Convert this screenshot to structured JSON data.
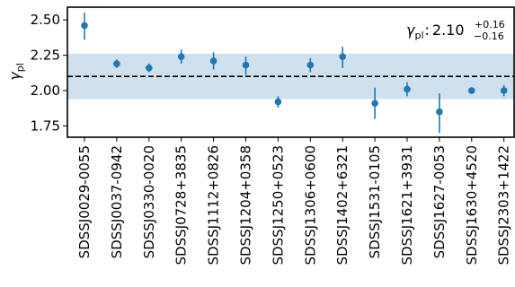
{
  "chart_data": {
    "type": "scatter",
    "ylabel_symbol": "γ",
    "ylabel_subscript": "pl",
    "ylim": [
      1.67,
      2.59
    ],
    "yticks": [
      {
        "value": 1.75,
        "label": "1.75"
      },
      {
        "value": 2.0,
        "label": "2.00"
      },
      {
        "value": 2.25,
        "label": "2.25"
      },
      {
        "value": 2.5,
        "label": "2.50"
      }
    ],
    "categories": [
      "SDSSJ0029-0055",
      "SDSSJ0037-0942",
      "SDSSJ0330-0020",
      "SDSSJ0728+3835",
      "SDSSJ1112+0826",
      "SDSSJ1204+0358",
      "SDSSJ1250+0523",
      "SDSSJ1306+0600",
      "SDSSJ1402+6321",
      "SDSSJ1531-0105",
      "SDSSJ1621+3931",
      "SDSSJ1627-0053",
      "SDSSJ1630+4520",
      "SDSSJ2303+1422"
    ],
    "series": [
      {
        "values": [
          2.46,
          2.19,
          2.16,
          2.24,
          2.21,
          2.18,
          1.92,
          2.18,
          2.24,
          1.91,
          2.01,
          1.85,
          2.0,
          2.0
        ],
        "err_low": [
          0.1,
          0.03,
          0.03,
          0.05,
          0.06,
          0.07,
          0.04,
          0.05,
          0.08,
          0.11,
          0.05,
          0.15,
          0.02,
          0.04
        ],
        "err_high": [
          0.09,
          0.03,
          0.03,
          0.05,
          0.06,
          0.06,
          0.04,
          0.05,
          0.07,
          0.11,
          0.05,
          0.13,
          0.02,
          0.04
        ]
      }
    ],
    "reference": {
      "median": 2.1,
      "upper": 0.16,
      "lower": 0.16,
      "band": [
        1.94,
        2.26
      ]
    },
    "annotation": {
      "symbol": "γ",
      "subscript": "pl",
      "separator": ":",
      "value": "2.10",
      "upper": "+0.16",
      "lower": "−0.16"
    },
    "colors": {
      "points": "#1f77b4",
      "band": "#cfe0ee",
      "median_line": "#000000"
    },
    "grid": false
  }
}
